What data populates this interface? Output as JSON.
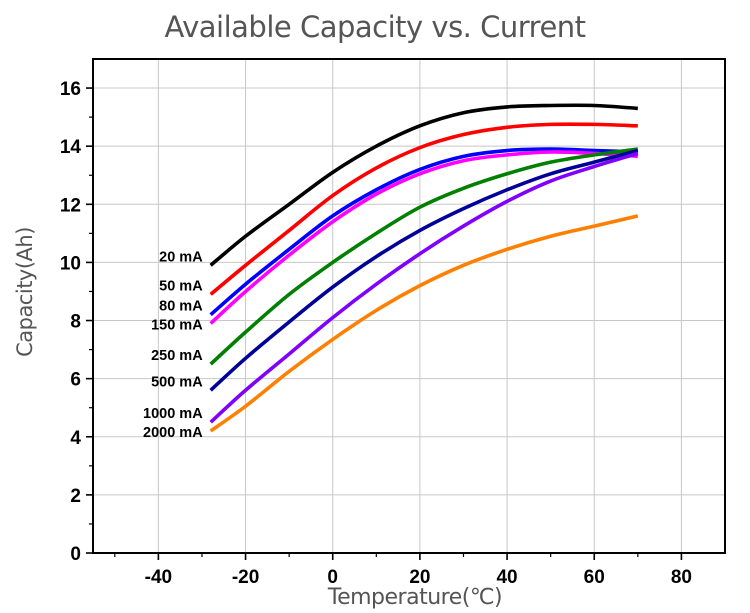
{
  "chart_data": {
    "type": "line",
    "title": "Available Capacity vs. Current",
    "xlabel": "Temperature(℃)",
    "ylabel": "Capacity(Ah)",
    "xlim": [
      -55,
      90
    ],
    "ylim": [
      0,
      17
    ],
    "xticks": [
      -40,
      -20,
      0,
      20,
      40,
      60,
      80
    ],
    "xtick_labels": [
      "-40",
      "-20",
      "0",
      "20",
      "40",
      "60",
      "80"
    ],
    "yticks": [
      0,
      2,
      4,
      6,
      8,
      10,
      12,
      14,
      16
    ],
    "ytick_labels": [
      "0",
      "2",
      "4",
      "6",
      "8",
      "10",
      "12",
      "14",
      "16"
    ],
    "grid": true,
    "legend": "none",
    "x": [
      -28,
      -20,
      -10,
      0,
      10,
      20,
      30,
      40,
      50,
      60,
      70
    ],
    "series": [
      {
        "name": "20 mA",
        "color": "#000000",
        "values": [
          9.9,
          10.9,
          12.0,
          13.1,
          14.0,
          14.7,
          15.15,
          15.35,
          15.4,
          15.4,
          15.3
        ]
      },
      {
        "name": "50 mA",
        "color": "#ff0000",
        "values": [
          8.9,
          9.9,
          11.1,
          12.3,
          13.25,
          13.95,
          14.4,
          14.65,
          14.75,
          14.75,
          14.7
        ]
      },
      {
        "name": "80 mA",
        "color": "#0000ff",
        "values": [
          8.2,
          9.25,
          10.45,
          11.6,
          12.5,
          13.2,
          13.65,
          13.85,
          13.9,
          13.85,
          13.8
        ]
      },
      {
        "name": "150 mA",
        "color": "#ff00ff",
        "values": [
          7.9,
          9.0,
          10.25,
          11.4,
          12.35,
          13.05,
          13.5,
          13.7,
          13.8,
          13.75,
          13.65
        ]
      },
      {
        "name": "250 mA",
        "color": "#008000",
        "values": [
          6.5,
          7.6,
          8.9,
          10.0,
          11.0,
          11.9,
          12.55,
          13.05,
          13.45,
          13.7,
          13.9
        ]
      },
      {
        "name": "500 mA",
        "color": "#000099",
        "values": [
          5.6,
          6.7,
          7.95,
          9.15,
          10.2,
          11.1,
          11.85,
          12.5,
          13.05,
          13.45,
          13.85
        ]
      },
      {
        "name": "1000 mA",
        "color": "#8000ff",
        "values": [
          4.5,
          5.6,
          6.85,
          8.1,
          9.25,
          10.3,
          11.25,
          12.1,
          12.8,
          13.3,
          13.75
        ]
      },
      {
        "name": "2000 mA",
        "color": "#ff8000",
        "values": [
          4.2,
          5.05,
          6.25,
          7.35,
          8.35,
          9.2,
          9.9,
          10.45,
          10.9,
          11.25,
          11.6
        ]
      }
    ]
  }
}
